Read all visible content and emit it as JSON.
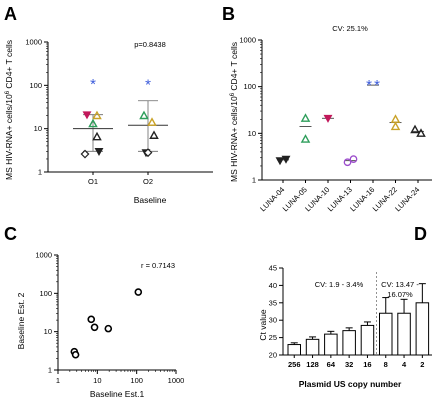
{
  "chart_data": [
    {
      "panel": "A",
      "type": "scatter",
      "ylabel": "MS HIV-RNA+ cells/10^6 CD4+ T cells",
      "xlabel": "Baseline",
      "categories": [
        "O1",
        "O2"
      ],
      "y_log": true,
      "ylim": [
        1,
        1000
      ],
      "yticks": [
        "1",
        "10",
        "100",
        "1000"
      ],
      "annotation": "p=0.8438",
      "summary": [
        {
          "category": "O1",
          "mean": 10,
          "upper": 21,
          "lower": 3
        },
        {
          "category": "O2",
          "mean": 12,
          "upper": 44,
          "lower": 3
        }
      ],
      "points": [
        {
          "category": "O1",
          "y": 108,
          "marker": "asterisk",
          "color": "#3b5bdb"
        },
        {
          "category": "O1",
          "y": 21,
          "marker": "triangle-down",
          "color": "#c2185b"
        },
        {
          "category": "O1",
          "y": 20,
          "marker": "triangle-up",
          "color": "#c9a227"
        },
        {
          "category": "O1",
          "y": 13,
          "marker": "triangle-up",
          "color": "#2e9e5b"
        },
        {
          "category": "O1",
          "y": 6.5,
          "marker": "triangle-up",
          "color": "#222222"
        },
        {
          "category": "O1",
          "y": 3,
          "marker": "triangle-down",
          "color": "#222222"
        },
        {
          "category": "O1",
          "y": 2.6,
          "marker": "diamond-open",
          "color": "#222222"
        },
        {
          "category": "O2",
          "y": 104,
          "marker": "asterisk",
          "color": "#3b5bdb"
        },
        {
          "category": "O2",
          "y": 20,
          "marker": "triangle-up",
          "color": "#2e9e5b"
        },
        {
          "category": "O2",
          "y": 14,
          "marker": "triangle-up",
          "color": "#c9a227"
        },
        {
          "category": "O2",
          "y": 7,
          "marker": "triangle-up",
          "color": "#222222"
        },
        {
          "category": "O2",
          "y": 2.8,
          "marker": "triangle-down",
          "color": "#222222"
        },
        {
          "category": "O2",
          "y": 2.8,
          "marker": "diamond-open",
          "color": "#222222"
        }
      ]
    },
    {
      "panel": "B",
      "type": "scatter",
      "ylabel": "MS HIV-RNA+ cells/10^6 CD4+ T cells",
      "xlabel": "",
      "categories": [
        "LUNA-04",
        "LUNA-05",
        "LUNA-10",
        "LUNA-13",
        "LUNA-16",
        "LUNA-22",
        "LUNA-24"
      ],
      "y_log": true,
      "ylim": [
        1,
        1000
      ],
      "yticks": [
        "1",
        "10",
        "100",
        "1000"
      ],
      "annotation": "CV: 25.1%",
      "summary": [
        {
          "category": "LUNA-04",
          "mean": 2.7
        },
        {
          "category": "LUNA-05",
          "mean": 14
        },
        {
          "category": "LUNA-10",
          "mean": 21
        },
        {
          "category": "LUNA-13",
          "mean": 2.6
        },
        {
          "category": "LUNA-16",
          "mean": 108
        },
        {
          "category": "LUNA-22",
          "mean": 17
        },
        {
          "category": "LUNA-24",
          "mean": 11
        }
      ],
      "points": [
        {
          "category": "LUNA-04",
          "y": 2.6,
          "marker": "triangle-down",
          "color": "#222222"
        },
        {
          "category": "LUNA-04",
          "y": 2.8,
          "marker": "triangle-down",
          "color": "#222222"
        },
        {
          "category": "LUNA-05",
          "y": 21,
          "marker": "triangle-up",
          "color": "#2e9e5b"
        },
        {
          "category": "LUNA-05",
          "y": 7.5,
          "marker": "triangle-up",
          "color": "#2e9e5b"
        },
        {
          "category": "LUNA-10",
          "y": 21,
          "marker": "triangle-down",
          "color": "#c2185b"
        },
        {
          "category": "LUNA-13",
          "y": 2.4,
          "marker": "circle-open",
          "color": "#9c4dcc"
        },
        {
          "category": "LUNA-13",
          "y": 2.8,
          "marker": "circle-open",
          "color": "#9c4dcc"
        },
        {
          "category": "LUNA-16",
          "y": 108,
          "marker": "asterisk",
          "color": "#3b5bdb"
        },
        {
          "category": "LUNA-16",
          "y": 108,
          "marker": "asterisk",
          "color": "#3b5bdb"
        },
        {
          "category": "LUNA-22",
          "y": 20,
          "marker": "triangle-up",
          "color": "#c9a227"
        },
        {
          "category": "LUNA-22",
          "y": 14,
          "marker": "triangle-up",
          "color": "#c9a227"
        },
        {
          "category": "LUNA-24",
          "y": 12,
          "marker": "triangle-up",
          "color": "#222222"
        },
        {
          "category": "LUNA-24",
          "y": 10,
          "marker": "triangle-up",
          "color": "#222222"
        }
      ]
    },
    {
      "panel": "C",
      "type": "scatter",
      "xlabel": "Baseline Est.1",
      "ylabel": "Baseline Est. 2",
      "x_log": true,
      "y_log": true,
      "xlim": [
        1,
        1000
      ],
      "ylim": [
        1,
        1000
      ],
      "xticks": [
        "1",
        "10",
        "100",
        "1000"
      ],
      "yticks": [
        "1",
        "10",
        "100",
        "1000"
      ],
      "annotation": "r = 0.7143",
      "points": [
        {
          "x": 2.6,
          "y": 3
        },
        {
          "x": 2.8,
          "y": 2.5
        },
        {
          "x": 7,
          "y": 21
        },
        {
          "x": 8.5,
          "y": 13
        },
        {
          "x": 19,
          "y": 12
        },
        {
          "x": 110,
          "y": 108
        }
      ]
    },
    {
      "panel": "D",
      "type": "bar",
      "xlabel": "Plasmid US copy number",
      "ylabel": "Ct value",
      "categories": [
        "256",
        "128",
        "64",
        "32",
        "16",
        "8",
        "4",
        "2"
      ],
      "values": [
        23,
        24.5,
        26,
        27,
        28.5,
        32,
        32,
        35
      ],
      "errors": [
        0.5,
        0.7,
        0.8,
        0.8,
        1.0,
        4.5,
        4.0,
        5.5
      ],
      "ylim": [
        20,
        45
      ],
      "yticks": [
        "20",
        "25",
        "30",
        "35",
        "40",
        "45"
      ],
      "annotations": [
        "CV: 1.9 - 3.4%",
        "CV: 13.47 -",
        "16.07%"
      ]
    }
  ],
  "panels": {
    "A": {
      "letter": "A",
      "ylabel_main": "MS HIV-RNA+ cells/10",
      "ylabel_sup": "6",
      "ylabel_tail": " CD4+ T cells"
    },
    "B": {
      "letter": "B",
      "ylabel_main": "MS HIV-RNA+ cells/10",
      "ylabel_sup": "6",
      "ylabel_tail": " CD4+ T cells"
    },
    "C": {
      "letter": "C"
    },
    "D": {
      "letter": "D"
    }
  }
}
